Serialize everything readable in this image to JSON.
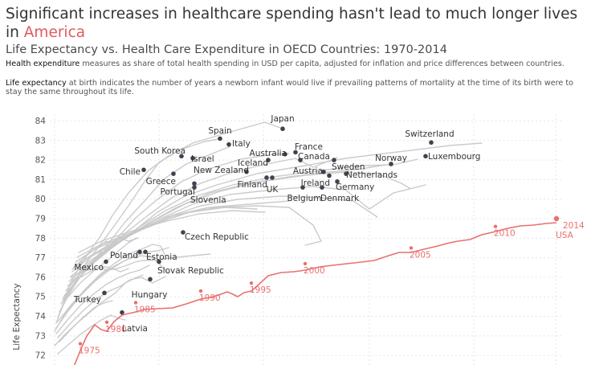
{
  "header": {
    "title_main": "Significant increases in healthcare spending hasn't lead to much longer lives in",
    "title_highlight": "America",
    "subtitle": "Life Expectancy vs. Health Care Expenditure in OECD Countries: 1970-2014",
    "desc1_bold": "Health expenditure",
    "desc1_rest": " measures as share of total health spending in USD per capita, adjusted for inflation and price differences between countries.",
    "desc2_bold": "Life expectancy",
    "desc2_rest": " at birth indicates the number of years a newborn infant would live if prevailing patterns of mortality at the time of its birth were to stay the same throughout its life."
  },
  "colors": {
    "background": "#ffffff",
    "usa": "#e8706f",
    "others": "#c8c8c8",
    "dots": "#3f4350",
    "grid": "#e6e6e6"
  },
  "chart_data": {
    "type": "line",
    "ylabel": "Life Expectancy",
    "xlabel": "",
    "ylim": [
      72,
      84.5
    ],
    "yticks": [
      72,
      73,
      74,
      75,
      76,
      77,
      78,
      79,
      80,
      81,
      82,
      83,
      84
    ],
    "usa": {
      "name": "USA",
      "points": [
        [
          1975,
          72.6
        ],
        [
          1980,
          73.7
        ],
        [
          1985,
          74.7
        ],
        [
          1990,
          75.3
        ],
        [
          1995,
          75.7
        ],
        [
          2000,
          76.7
        ],
        [
          2005,
          77.5
        ],
        [
          2010,
          78.6
        ],
        [
          2014,
          79.0
        ]
      ],
      "labeled_years": [
        "1975",
        "1980",
        "1985",
        "1990",
        "1995",
        "2000",
        "2005",
        "2010",
        "2014"
      ]
    },
    "countries": [
      {
        "name": "Japan",
        "y": 83.6
      },
      {
        "name": "Spain",
        "y": 83.1
      },
      {
        "name": "Italy",
        "y": 82.8
      },
      {
        "name": "Switzerland",
        "y": 82.9
      },
      {
        "name": "South Korea",
        "y": 82.2
      },
      {
        "name": "Israel",
        "y": 82.1
      },
      {
        "name": "France",
        "y": 82.4
      },
      {
        "name": "Australia",
        "y": 82.3
      },
      {
        "name": "Canada",
        "y": 82.0
      },
      {
        "name": "Iceland",
        "y": 82.0
      },
      {
        "name": "Luxembourg",
        "y": 82.2
      },
      {
        "name": "Norway",
        "y": 81.8
      },
      {
        "name": "Chile",
        "y": 81.5
      },
      {
        "name": "New Zealand",
        "y": 81.4
      },
      {
        "name": "Sweden",
        "y": 82.0
      },
      {
        "name": "Austria",
        "y": 81.4
      },
      {
        "name": "Netherlands",
        "y": 81.3
      },
      {
        "name": "Greece",
        "y": 81.3
      },
      {
        "name": "Finland",
        "y": 81.1
      },
      {
        "name": "Ireland",
        "y": 81.2
      },
      {
        "name": "Portugal",
        "y": 80.8
      },
      {
        "name": "UK",
        "y": 81.1
      },
      {
        "name": "Germany",
        "y": 80.9
      },
      {
        "name": "Slovenia",
        "y": 80.6
      },
      {
        "name": "Belgium",
        "y": 80.6
      },
      {
        "name": "Denmark",
        "y": 80.6
      },
      {
        "name": "Czech Republic",
        "y": 78.3
      },
      {
        "name": "Poland",
        "y": 77.3
      },
      {
        "name": "Estonia",
        "y": 77.3
      },
      {
        "name": "Mexico",
        "y": 76.8
      },
      {
        "name": "Slovak Republic",
        "y": 76.8
      },
      {
        "name": "Hungary",
        "y": 75.9
      },
      {
        "name": "Turkey",
        "y": 75.2
      },
      {
        "name": "Latvia",
        "y": 74.2
      }
    ]
  }
}
